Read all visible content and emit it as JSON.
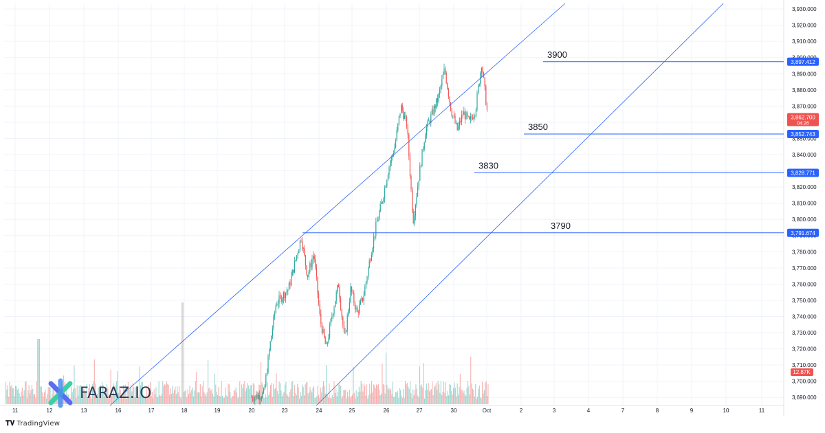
{
  "chart_data": {
    "type": "candlestick",
    "title": "",
    "x_ticks": [
      "11",
      "12",
      "13",
      "16",
      "17",
      "18",
      "19",
      "20",
      "23",
      "24",
      "25",
      "26",
      "27",
      "30",
      "Oct",
      "2",
      "3",
      "4",
      "7",
      "8",
      "9",
      "10",
      "11"
    ],
    "y_ticks": [
      "3,690.000",
      "3,700.000",
      "3,710.000",
      "3,720.000",
      "3,730.000",
      "3,740.000",
      "3,750.000",
      "3,760.000",
      "3,770.000",
      "3,780.000",
      "3,790.000",
      "3,800.000",
      "3,810.000",
      "3,820.000",
      "3,830.000",
      "3,840.000",
      "3,850.000",
      "3,860.000",
      "3,870.000",
      "3,880.000",
      "3,890.000",
      "3,900.000",
      "3,910.000",
      "3,920.000",
      "3,930.000"
    ],
    "ylim": [
      3685,
      3933
    ],
    "close_series": [
      {
        "date": "19",
        "value": 3690
      },
      {
        "date": "20",
        "value": 3692
      },
      {
        "date": "20.5",
        "value": 3722
      },
      {
        "date": "21",
        "value": 3748
      },
      {
        "date": "22",
        "value": 3757
      },
      {
        "date": "23",
        "value": 3789
      },
      {
        "date": "23.5",
        "value": 3765
      },
      {
        "date": "24",
        "value": 3779
      },
      {
        "date": "24.5",
        "value": 3738
      },
      {
        "date": "25",
        "value": 3720
      },
      {
        "date": "25.5",
        "value": 3742
      },
      {
        "date": "26",
        "value": 3760
      },
      {
        "date": "26.5",
        "value": 3725
      },
      {
        "date": "27",
        "value": 3757
      },
      {
        "date": "27.5",
        "value": 3742
      },
      {
        "date": "28",
        "value": 3752
      },
      {
        "date": "28.5",
        "value": 3775
      },
      {
        "date": "29",
        "value": 3796
      },
      {
        "date": "29.5",
        "value": 3812
      },
      {
        "date": "30",
        "value": 3832
      },
      {
        "date": "30.5",
        "value": 3845
      },
      {
        "date": "31",
        "value": 3870
      },
      {
        "date": "31.5",
        "value": 3858
      },
      {
        "date": "32",
        "value": 3799
      },
      {
        "date": "32.5",
        "value": 3828
      },
      {
        "date": "33",
        "value": 3855
      },
      {
        "date": "33.5",
        "value": 3865
      },
      {
        "date": "34",
        "value": 3875
      },
      {
        "date": "34.5",
        "value": 3893
      },
      {
        "date": "35",
        "value": 3868
      },
      {
        "date": "35.5",
        "value": 3855
      },
      {
        "date": "36",
        "value": 3866
      },
      {
        "date": "36.5",
        "value": 3860
      },
      {
        "date": "37",
        "value": 3868
      },
      {
        "date": "37.5",
        "value": 3897
      },
      {
        "date": "38",
        "value": 3863
      }
    ],
    "horizontal_levels": [
      {
        "label": "3900",
        "price_tag": "3,897.412",
        "value": 3897.412
      },
      {
        "label": "3850",
        "price_tag": "3,852.743",
        "value": 3852.743
      },
      {
        "label": "3830",
        "price_tag": "3,828.771",
        "value": 3828.771
      },
      {
        "label": "3790",
        "price_tag": "3,791.674",
        "value": 3791.674
      }
    ],
    "current_price": {
      "value": "3,862.700",
      "countdown": "04:26"
    },
    "volume_tag": "12.87K"
  },
  "branding": {
    "watermark": "FARAZ.IO",
    "footer": "TradingView"
  },
  "colors": {
    "up": "#26a69a",
    "down": "#ef5350",
    "line": "#2962ff",
    "grid": "#f0f3fa",
    "axis_text": "#131722"
  }
}
